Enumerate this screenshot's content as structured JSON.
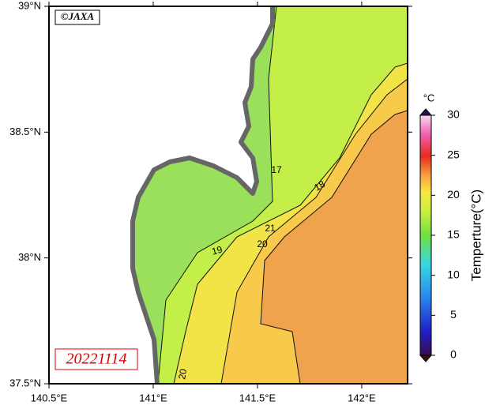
{
  "map": {
    "credit": "©JAXA",
    "date": "20221114",
    "xlim": [
      140.5,
      142.22
    ],
    "ylim": [
      37.5,
      39
    ],
    "xticks": [
      {
        "value": 140.5,
        "label": "140.5°E"
      },
      {
        "value": 141,
        "label": "141°E"
      },
      {
        "value": 141.5,
        "label": "141.5°E"
      },
      {
        "value": 142,
        "label": "142°E"
      }
    ],
    "yticks": [
      {
        "value": 37.5,
        "label": "37.5°N"
      },
      {
        "value": 38,
        "label": "38°N"
      },
      {
        "value": 38.5,
        "label": "38.5°N"
      },
      {
        "value": 39,
        "label": "39°N"
      }
    ],
    "contour_labels": [
      17,
      18,
      19,
      21,
      20,
      20
    ]
  },
  "colorbar": {
    "unit": "°C",
    "label": "Temperture(°C)",
    "lim": [
      0,
      30
    ],
    "ticks": [
      0,
      5,
      10,
      15,
      20,
      25,
      30
    ]
  }
}
